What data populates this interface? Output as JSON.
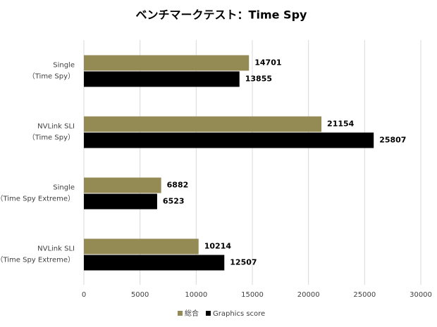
{
  "chart_data": {
    "type": "bar",
    "orientation": "horizontal",
    "title": "ベンチマークテスト：Time Spy",
    "categories": [
      [
        "Single",
        "（Time Spy）"
      ],
      [
        "NVLink SLI",
        "（Time Spy）"
      ],
      [
        "Single",
        "（Time Spy Extreme）"
      ],
      [
        "NVLink SLI",
        "（Time Spy Extreme）"
      ]
    ],
    "series": [
      {
        "name": "総合",
        "color": "#948a54",
        "values": [
          14701,
          21154,
          6882,
          10214
        ]
      },
      {
        "name": "Graphics score",
        "color": "#000000",
        "values": [
          13855,
          25807,
          6523,
          12507
        ]
      }
    ],
    "xlim": [
      0,
      30000
    ],
    "xticks": [
      0,
      5000,
      10000,
      15000,
      20000,
      25000,
      30000
    ],
    "grid": true,
    "legend": "bottom"
  }
}
